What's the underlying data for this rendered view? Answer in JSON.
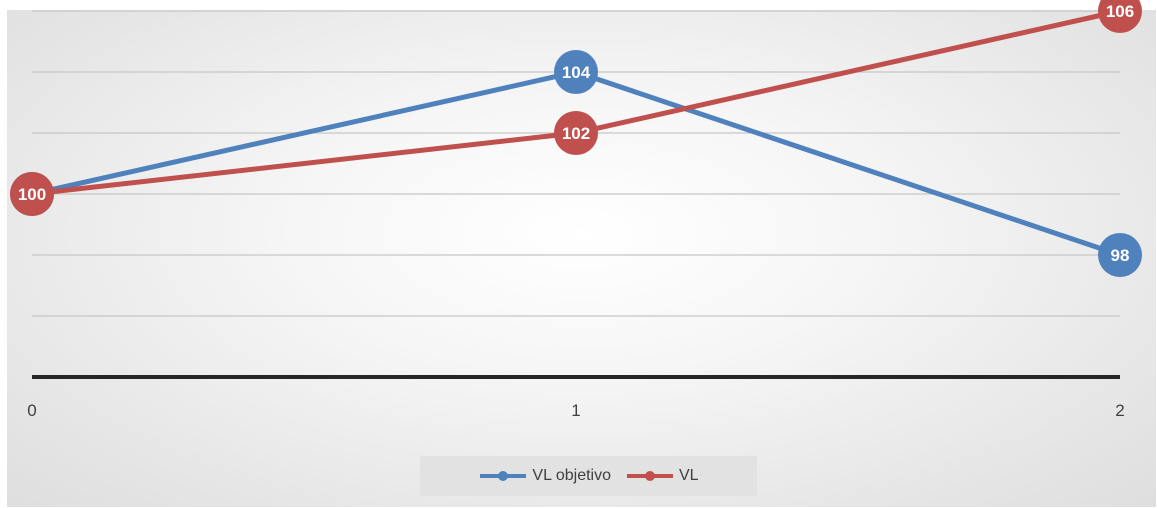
{
  "chart_data": {
    "type": "line",
    "categories": [
      "0",
      "1",
      "2"
    ],
    "series": [
      {
        "name": "VL objetivo",
        "values": [
          100,
          104,
          98
        ],
        "labels": [
          "100",
          "104",
          "98"
        ],
        "color": "#4f81bd"
      },
      {
        "name": "VL",
        "values": [
          100,
          102,
          106
        ],
        "labels": [
          "100",
          "102",
          "106"
        ],
        "color": "#c0504d"
      }
    ],
    "title": "",
    "xlabel": "",
    "ylabel": "",
    "ylim": [
      94,
      108
    ],
    "grid": true,
    "legend_position": "bottom"
  }
}
